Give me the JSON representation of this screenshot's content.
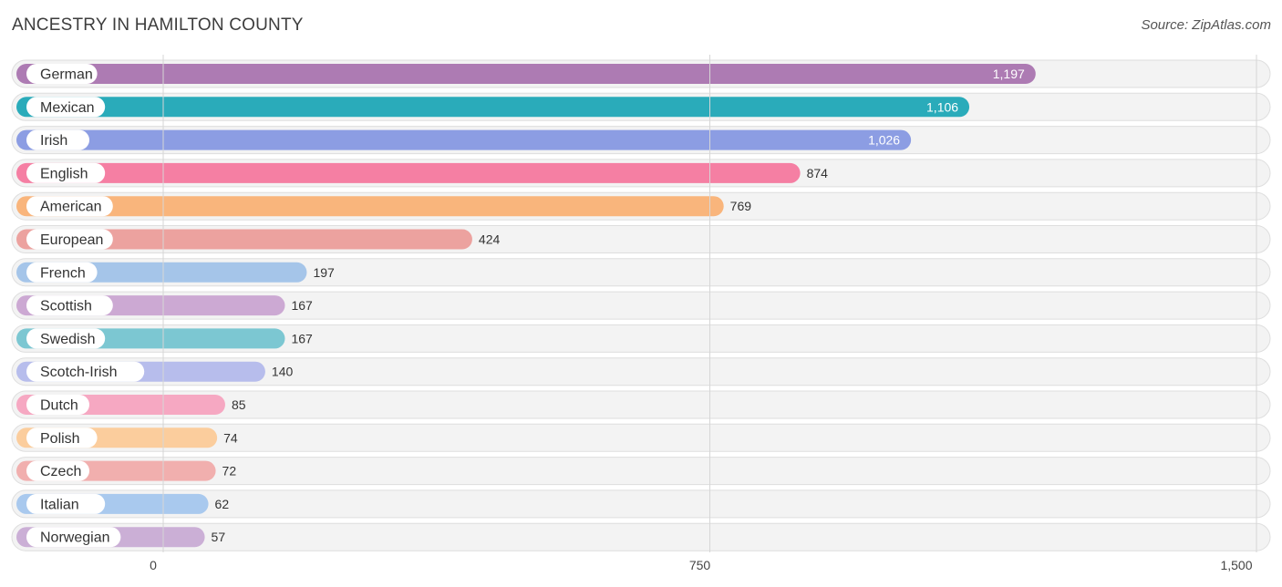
{
  "header": {
    "title": "ANCESTRY IN HAMILTON COUNTY",
    "source": "Source: ZipAtlas.com"
  },
  "chart_data": {
    "type": "bar",
    "orientation": "horizontal",
    "title": "ANCESTRY IN HAMILTON COUNTY",
    "xlim": [
      0,
      1500
    ],
    "ticks": [
      {
        "value": 0,
        "label": "0"
      },
      {
        "value": 750,
        "label": "750"
      },
      {
        "value": 1500,
        "label": "1,500"
      }
    ],
    "grid": true,
    "categories": [
      "German",
      "Mexican",
      "Irish",
      "English",
      "American",
      "European",
      "French",
      "Scottish",
      "Swedish",
      "Scotch-Irish",
      "Dutch",
      "Polish",
      "Czech",
      "Italian",
      "Norwegian"
    ],
    "values": [
      1197,
      1106,
      1026,
      874,
      769,
      424,
      197,
      167,
      167,
      140,
      85,
      74,
      72,
      62,
      57
    ],
    "value_labels": [
      "1,197",
      "1,106",
      "1,026",
      "874",
      "769",
      "424",
      "197",
      "167",
      "167",
      "140",
      "85",
      "74",
      "72",
      "62",
      "57"
    ],
    "colors": [
      "#ad7bb3",
      "#2aabba",
      "#8c9de3",
      "#f57fa3",
      "#f9b57c",
      "#eca29f",
      "#a5c5e9",
      "#cca9d3",
      "#7cc7d2",
      "#b7bdec",
      "#f6a8c2",
      "#fbcd9d",
      "#f1afae",
      "#a9c9ee",
      "#cbafd6"
    ]
  }
}
